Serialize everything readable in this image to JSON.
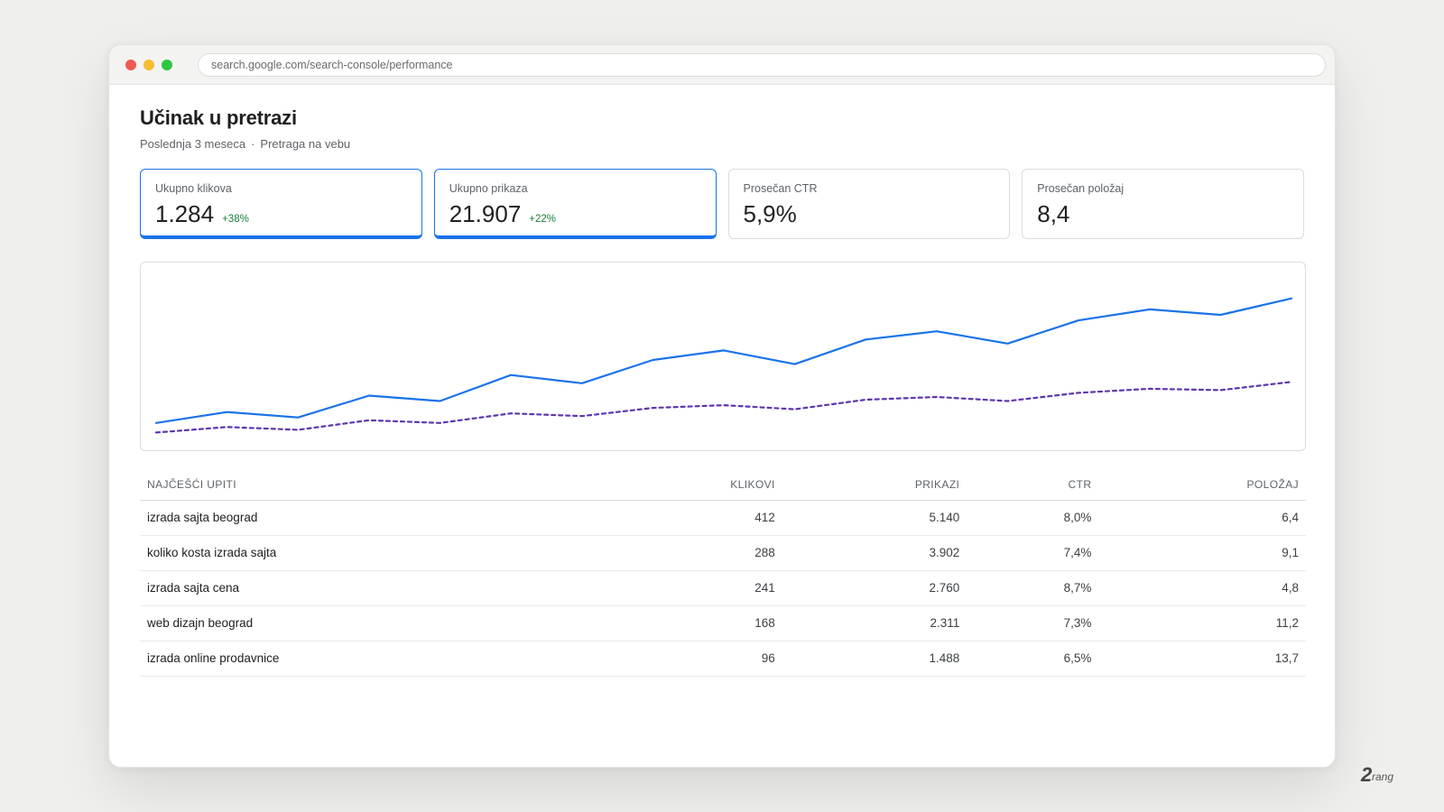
{
  "browser": {
    "url": "search.google.com/search-console/performance"
  },
  "page": {
    "title": "Učinak u pretrazi",
    "period": "Poslednja 3 meseca",
    "separator": "·",
    "search_type": "Pretraga na vebu"
  },
  "metrics": [
    {
      "label": "Ukupno klikova",
      "value": "1.284",
      "delta": "+38%",
      "active": true,
      "color": "#1a73e8"
    },
    {
      "label": "Ukupno prikaza",
      "value": "21.907",
      "delta": "+22%",
      "active": true,
      "color": "#5e35b1"
    },
    {
      "label": "Prosečan CTR",
      "value": "5,9%",
      "delta": "",
      "active": false
    },
    {
      "label": "Prosečan položaj",
      "value": "8,4",
      "delta": "",
      "active": false
    }
  ],
  "chart_data": {
    "type": "line",
    "x": [
      1,
      2,
      3,
      4,
      5,
      6,
      7,
      8,
      9,
      10,
      11,
      12,
      13,
      14,
      15,
      16,
      17
    ],
    "series": [
      {
        "values": [
          12,
          20,
          16,
          32,
          28,
          47,
          41,
          58,
          65,
          55,
          73,
          79,
          70,
          87,
          95,
          91,
          103
        ],
        "color": "#1a73e8",
        "style": "solid"
      },
      {
        "values": [
          5,
          9,
          7,
          14,
          12,
          19,
          17,
          23,
          25,
          22,
          29,
          31,
          28,
          34,
          37,
          36,
          42
        ],
        "color": "#5e35b1",
        "style": "dashed"
      }
    ],
    "ylim": [
      0,
      120
    ],
    "grid": false,
    "legend": "none"
  },
  "table": {
    "headers": [
      "NAJČEŠĆI UPITI",
      "KLIKOVI",
      "PRIKAZI",
      "CTR",
      "POLOŽAJ"
    ],
    "rows": [
      [
        "izrada sajta beograd",
        "412",
        "5.140",
        "8,0%",
        "6,4"
      ],
      [
        "koliko kosta izrada sajta",
        "288",
        "3.902",
        "7,4%",
        "9,1"
      ],
      [
        "izrada sajta cena",
        "241",
        "2.760",
        "8,7%",
        "4,8"
      ],
      [
        "web dizajn beograd",
        "168",
        "2.311",
        "7,3%",
        "11,2"
      ],
      [
        "izrada online prodavnice",
        "96",
        "1.488",
        "6,5%",
        "13,7"
      ]
    ]
  },
  "watermark": {
    "text": "2rang"
  }
}
